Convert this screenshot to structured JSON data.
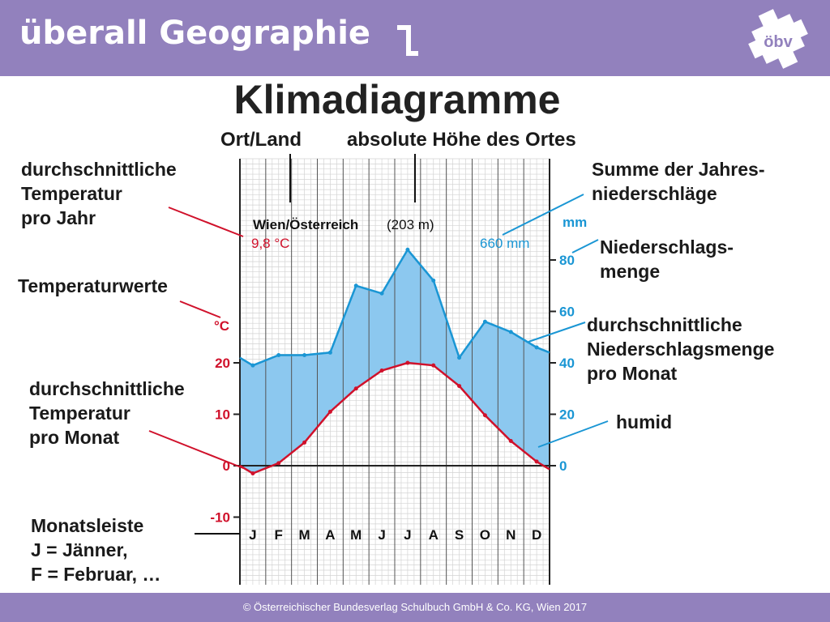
{
  "header": {
    "brand": "überall Geographie",
    "logo_text": "öbv",
    "bg_color": "#9281bd"
  },
  "title": "Klimadiagramme",
  "labels": {
    "ort_land": "Ort/Land",
    "hoehe": "absolute Höhe des Ortes",
    "temp_jahr": [
      "durchschnittliche",
      "Temperatur",
      "pro Jahr"
    ],
    "temperaturwerte": "Temperaturwerte",
    "temp_monat": [
      "durchschnittliche",
      "Temperatur",
      "pro Monat"
    ],
    "monatsleiste": [
      "Monatsleiste",
      "J = Jänner,",
      "F = Februar, …"
    ],
    "summe_niederschlag": [
      "Summe der Jahres-",
      "niederschläge"
    ],
    "niederschlagsmenge": [
      "Niederschlags-",
      "menge"
    ],
    "nied_monat": [
      "durchschnittliche",
      "Niederschlagsmenge",
      "pro Monat"
    ],
    "humid": "humid"
  },
  "chart_data": {
    "type": "line",
    "location": "Wien/Österreich",
    "altitude": "(203 m)",
    "annual_temperature": "9,8  °C",
    "annual_precipitation": "660 mm",
    "months": [
      "J",
      "F",
      "M",
      "A",
      "M",
      "J",
      "J",
      "A",
      "S",
      "O",
      "N",
      "D"
    ],
    "temperature_c": [
      -1.5,
      0.5,
      4.5,
      10.5,
      15,
      18.5,
      20,
      19.5,
      15.5,
      9.8,
      4.8,
      0.8
    ],
    "precipitation_mm": [
      39,
      43,
      43,
      44,
      70,
      67,
      84,
      72,
      42,
      56,
      52,
      46
    ],
    "temp_axis": {
      "label": "°C",
      "ticks": [
        "20",
        "10",
        "0",
        "-10"
      ],
      "range": [
        -10,
        25
      ]
    },
    "precip_axis": {
      "label": "mm",
      "ticks": [
        "80",
        "60",
        "40",
        "20",
        "0"
      ],
      "range": [
        0,
        85
      ]
    },
    "colors": {
      "temperature": "#d0112b",
      "precipitation": "#1a96d4",
      "humid_fill": "#8cc8ef"
    }
  },
  "footer": {
    "copyright": "© Österreichischer Bundesverlag Schulbuch GmbH & Co. KG, Wien 2017"
  }
}
